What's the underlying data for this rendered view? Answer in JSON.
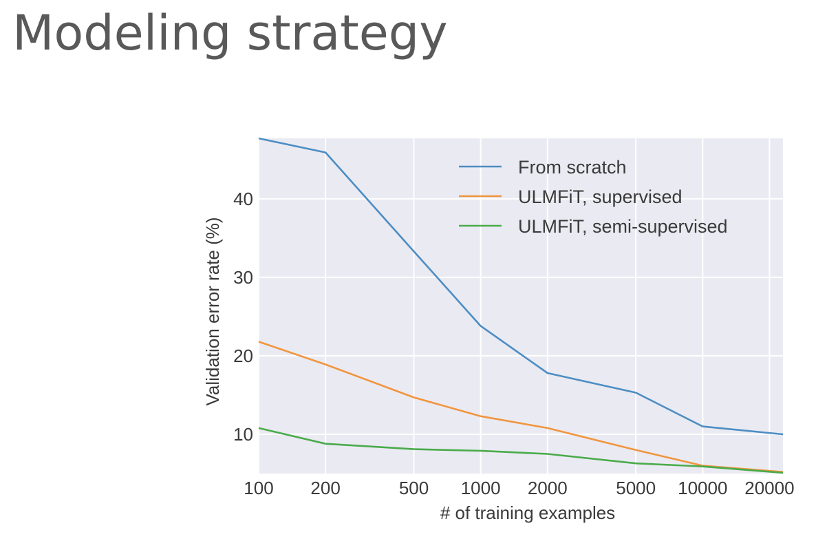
{
  "slide": {
    "title": "Modeling strategy"
  },
  "chart_data": {
    "type": "line",
    "title": "",
    "xlabel": "# of training examples",
    "ylabel": "Validation error rate (%)",
    "x_scale": "log",
    "x_ticks": [
      100,
      200,
      500,
      1000,
      2000,
      5000,
      10000,
      20000
    ],
    "x_tick_labels": [
      "100",
      "200",
      "500",
      "1000",
      "2000",
      "5000",
      "10000",
      "20000"
    ],
    "xlim": [
      100,
      23000
    ],
    "y_ticks": [
      10,
      20,
      30,
      40
    ],
    "y_tick_labels": [
      "10",
      "20",
      "30",
      "40"
    ],
    "ylim": [
      5,
      47.7
    ],
    "grid": true,
    "legend_position": "top-right",
    "background_color": "#eaeaf2",
    "series": [
      {
        "name": "From scratch",
        "color": "#4c8dc3",
        "x": [
          100,
          200,
          500,
          1000,
          2000,
          5000,
          10000,
          23000
        ],
        "y": [
          47.7,
          45.9,
          33.3,
          23.8,
          17.8,
          15.3,
          11.0,
          10.0
        ]
      },
      {
        "name": "ULMFiT, supervised",
        "color": "#f1953e",
        "x": [
          100,
          200,
          500,
          1000,
          2000,
          5000,
          10000,
          23000
        ],
        "y": [
          21.8,
          18.9,
          14.7,
          12.3,
          10.8,
          8.0,
          6.0,
          5.2
        ]
      },
      {
        "name": "ULMFiT, semi-supervised",
        "color": "#4aab4a",
        "x": [
          100,
          200,
          500,
          1000,
          2000,
          5000,
          10000,
          23000
        ],
        "y": [
          10.8,
          8.8,
          8.1,
          7.9,
          7.5,
          6.3,
          5.9,
          5.1
        ]
      }
    ]
  }
}
